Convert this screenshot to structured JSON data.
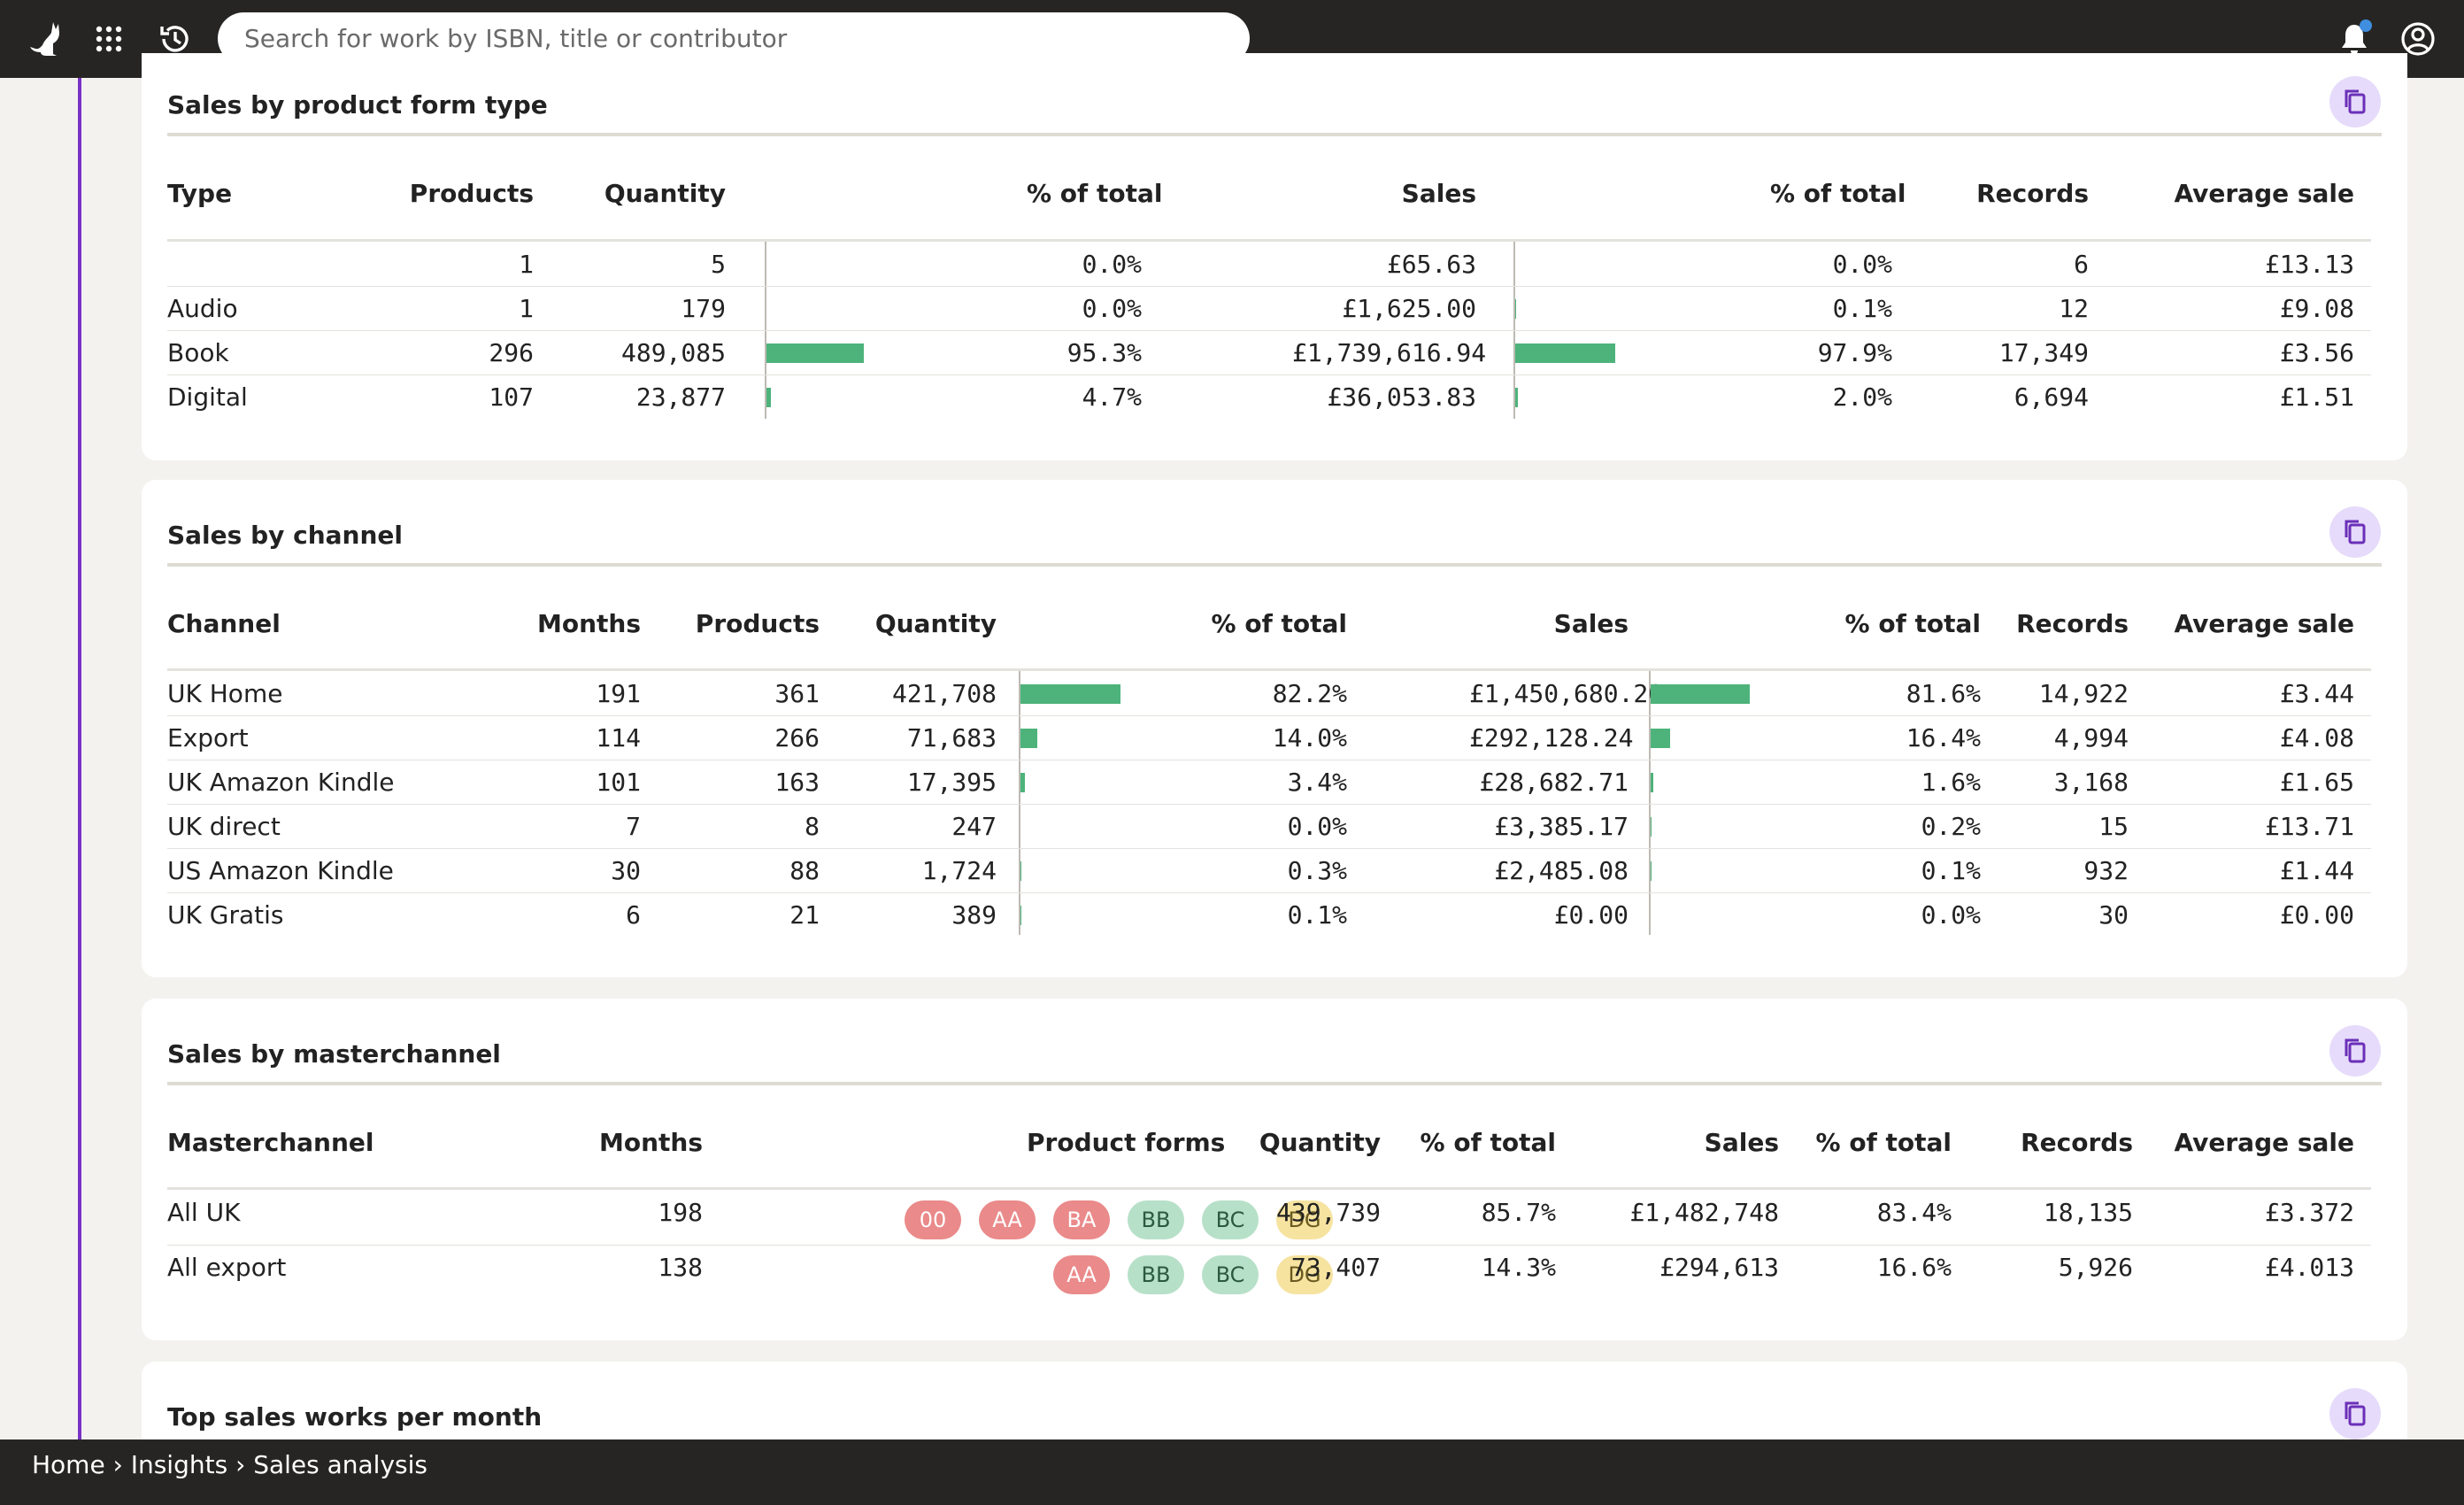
{
  "search": {
    "placeholder": "Search for work by ISBN, title or contributor"
  },
  "icons": {
    "logo": "cat-logo-icon",
    "apps": "apps-grid-icon",
    "history": "history-icon",
    "notifications": "bell-icon",
    "account": "user-circle-icon",
    "copy": "copy-icon"
  },
  "colors": {
    "topbar": "#262524",
    "accent": "#7a33c7",
    "bar": "#4db37b",
    "copy_button_bg": "#e6dbfa"
  },
  "form_type": {
    "title": "Sales by product form type",
    "headers": [
      "Type",
      "Products",
      "Quantity",
      "% of total",
      "Sales",
      "% of total",
      "Records",
      "Average sale"
    ],
    "rows": [
      {
        "type": "",
        "products": "1",
        "quantity": "5",
        "qty_pct": "0.0%",
        "qty_share": 0.0,
        "sales": "£65.63",
        "sales_pct": "0.0%",
        "sales_share": 0.0,
        "records": "6",
        "avg": "£13.13"
      },
      {
        "type": "Audio",
        "products": "1",
        "quantity": "179",
        "qty_pct": "0.0%",
        "qty_share": 0.0,
        "sales": "£1,625.00",
        "sales_pct": "0.1%",
        "sales_share": 0.1,
        "records": "12",
        "avg": "£9.08"
      },
      {
        "type": "Book",
        "products": "296",
        "quantity": "489,085",
        "qty_pct": "95.3%",
        "qty_share": 95.3,
        "sales": "£1,739,616.94",
        "sales_pct": "97.9%",
        "sales_share": 97.9,
        "records": "17,349",
        "avg": "£3.56"
      },
      {
        "type": "Digital",
        "products": "107",
        "quantity": "23,877",
        "qty_pct": "4.7%",
        "qty_share": 4.7,
        "sales": "£36,053.83",
        "sales_pct": "2.0%",
        "sales_share": 2.0,
        "records": "6,694",
        "avg": "£1.51"
      }
    ]
  },
  "channel": {
    "title": "Sales by channel",
    "headers": [
      "Channel",
      "Months",
      "Products",
      "Quantity",
      "% of total",
      "Sales",
      "% of total",
      "Records",
      "Average sale"
    ],
    "rows": [
      {
        "channel": "UK Home",
        "months": "191",
        "products": "361",
        "quantity": "421,708",
        "qty_pct": "82.2%",
        "qty_share": 82.2,
        "sales": "£1,450,680.20",
        "sales_pct": "81.6%",
        "sales_share": 81.6,
        "records": "14,922",
        "avg": "£3.44"
      },
      {
        "channel": "Export",
        "months": "114",
        "products": "266",
        "quantity": "71,683",
        "qty_pct": "14.0%",
        "qty_share": 14.0,
        "sales": "£292,128.24",
        "sales_pct": "16.4%",
        "sales_share": 16.4,
        "records": "4,994",
        "avg": "£4.08"
      },
      {
        "channel": "UK Amazon Kindle",
        "months": "101",
        "products": "163",
        "quantity": "17,395",
        "qty_pct": "3.4%",
        "qty_share": 3.4,
        "sales": "£28,682.71",
        "sales_pct": "1.6%",
        "sales_share": 1.6,
        "records": "3,168",
        "avg": "£1.65"
      },
      {
        "channel": "UK direct",
        "months": "7",
        "products": "8",
        "quantity": "247",
        "qty_pct": "0.0%",
        "qty_share": 0.0,
        "sales": "£3,385.17",
        "sales_pct": "0.2%",
        "sales_share": 0.2,
        "records": "15",
        "avg": "£13.71"
      },
      {
        "channel": "US Amazon Kindle",
        "months": "30",
        "products": "88",
        "quantity": "1,724",
        "qty_pct": "0.3%",
        "qty_share": 0.3,
        "sales": "£2,485.08",
        "sales_pct": "0.1%",
        "sales_share": 0.1,
        "records": "932",
        "avg": "£1.44"
      },
      {
        "channel": "UK Gratis",
        "months": "6",
        "products": "21",
        "quantity": "389",
        "qty_pct": "0.1%",
        "qty_share": 0.1,
        "sales": "£0.00",
        "sales_pct": "0.0%",
        "sales_share": 0.0,
        "records": "30",
        "avg": "£0.00"
      }
    ]
  },
  "masterchannel": {
    "title": "Sales by masterchannel",
    "headers": [
      "Masterchannel",
      "Months",
      "Product forms",
      "Quantity",
      "% of total",
      "Sales",
      "% of total",
      "Records",
      "Average sale"
    ],
    "rows": [
      {
        "name": "All UK",
        "months": "198",
        "forms": [
          "00",
          "AA",
          "BA",
          "BB",
          "BC",
          "DG"
        ],
        "quantity": "439,739",
        "qty_pct": "85.7%",
        "sales": "£1,482,748",
        "sales_pct": "83.4%",
        "records": "18,135",
        "avg": "£3.372"
      },
      {
        "name": "All export",
        "months": "138",
        "forms": [
          "AA",
          "BB",
          "BC",
          "DG"
        ],
        "quantity": "73,407",
        "qty_pct": "14.3%",
        "sales": "£294,613",
        "sales_pct": "16.6%",
        "records": "5,926",
        "avg": "£4.013"
      }
    ]
  },
  "top_works": {
    "title": "Top sales works per month"
  },
  "breadcrumb": {
    "items": [
      "Home",
      "Insights",
      "Sales analysis"
    ],
    "separator": "›"
  }
}
